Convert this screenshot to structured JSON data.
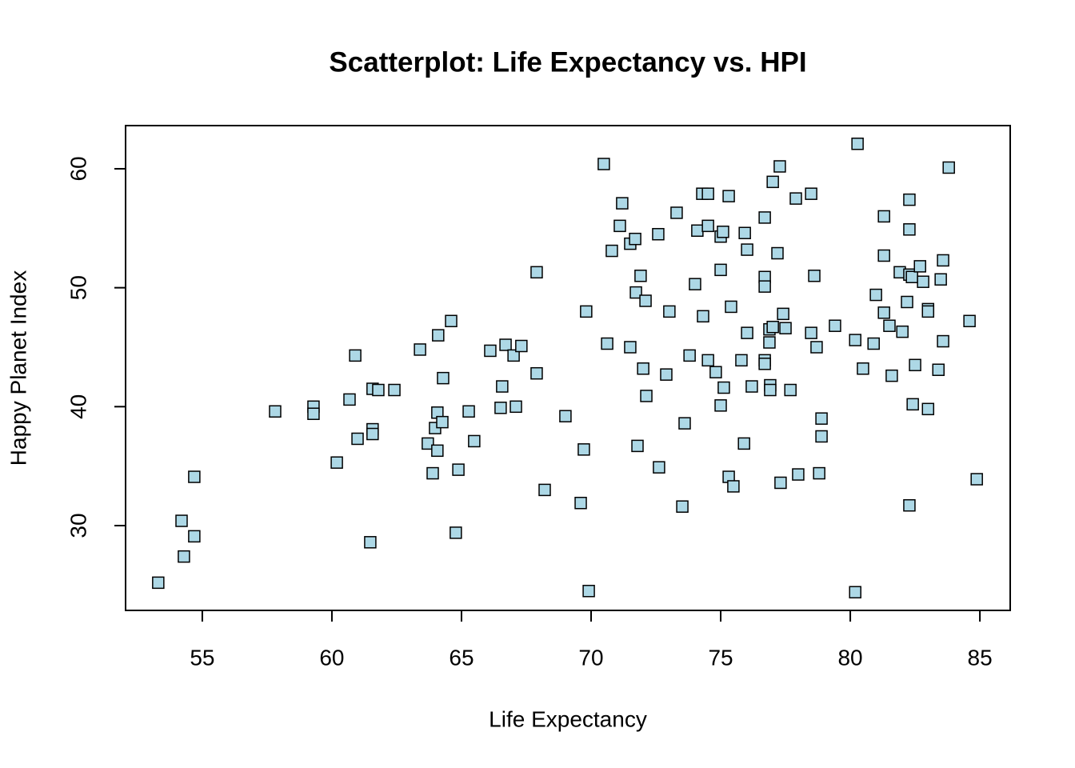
{
  "chart_data": {
    "type": "scatter",
    "title": "Scatterplot: Life Expectancy vs. HPI",
    "x_label": "Life Expectancy",
    "y_label": "Happy Planet Index",
    "marker_color": "#add8e6",
    "marker_edge": "#000000",
    "xlim": [
      52.04,
      86.17
    ],
    "ylim": [
      22.87,
      63.63
    ],
    "xticks": [
      55,
      60,
      65,
      70,
      75,
      80,
      85
    ],
    "yticks": [
      30,
      40,
      50,
      60
    ],
    "series": [
      {
        "x": [
          53.3,
          54.2,
          54.29,
          54.69,
          54.69,
          57.81,
          59.29,
          59.29,
          60.19,
          60.68,
          60.9,
          60.99,
          61.48,
          61.57,
          61.57,
          61.57,
          61.79,
          62.41,
          63.4,
          63.7,
          63.89,
          63.98,
          64.07,
          64.07,
          64.1,
          64.26,
          64.29,
          64.6,
          64.78,
          64.88,
          65.28,
          65.49,
          66.11,
          66.51,
          66.57,
          66.7,
          67.01,
          67.1,
          67.31,
          67.9,
          67.9,
          68.21,
          69.01,
          69.6,
          69.72,
          69.81,
          69.91,
          70.49,
          70.62,
          70.8,
          71.11,
          71.2,
          71.51,
          71.51,
          71.7,
          71.73,
          71.79,
          71.91,
          72.01,
          72.1,
          72.13,
          72.59,
          72.62,
          72.9,
          73.02,
          73.3,
          73.52,
          73.61,
          73.8,
          74.01,
          74.1,
          74.29,
          74.32,
          74.51,
          74.51,
          74.51,
          74.81,
          75.0,
          75.0,
          75.0,
          75.09,
          75.12,
          75.31,
          75.31,
          75.4,
          75.49,
          75.8,
          75.9,
          75.93,
          76.02,
          76.02,
          76.2,
          76.7,
          76.7,
          76.7,
          76.7,
          76.7,
          76.88,
          76.88,
          76.91,
          76.91,
          77.01,
          77.01,
          77.19,
          77.28,
          77.31,
          77.41,
          77.5,
          77.69,
          77.9,
          77.99,
          78.49,
          78.49,
          78.61,
          78.7,
          78.8,
          78.89,
          78.89,
          79.41,
          80.19,
          80.19,
          80.28,
          80.49,
          80.9,
          80.99,
          81.3,
          81.3,
          81.3,
          81.51,
          81.6,
          81.91,
          82.01,
          82.19,
          82.28,
          82.28,
          82.28,
          82.28,
          82.38,
          82.41,
          82.5,
          82.69,
          82.81,
          83.0,
          83.0,
          83.0,
          83.4,
          83.49,
          83.58,
          83.58,
          83.8,
          84.6,
          84.88
        ],
        "y": [
          25.2,
          30.4,
          27.4,
          29.1,
          34.1,
          39.6,
          40.0,
          39.4,
          35.3,
          40.6,
          44.3,
          37.3,
          28.6,
          41.5,
          38.1,
          37.7,
          41.4,
          41.4,
          44.8,
          36.9,
          34.4,
          38.2,
          39.5,
          36.3,
          46.0,
          38.7,
          42.4,
          47.2,
          29.4,
          34.7,
          39.6,
          37.1,
          44.7,
          39.9,
          41.7,
          45.2,
          44.3,
          40.0,
          45.1,
          51.3,
          42.8,
          33.0,
          39.2,
          31.9,
          36.4,
          48.0,
          24.5,
          60.4,
          45.3,
          53.1,
          55.2,
          57.1,
          53.7,
          45.0,
          54.1,
          49.6,
          36.7,
          51.0,
          43.2,
          48.9,
          40.9,
          54.5,
          34.9,
          42.7,
          48.0,
          56.3,
          31.6,
          38.6,
          44.3,
          50.3,
          54.8,
          57.9,
          47.6,
          55.2,
          57.9,
          43.9,
          42.9,
          51.5,
          54.3,
          40.1,
          54.7,
          41.6,
          57.7,
          34.1,
          48.4,
          33.3,
          43.9,
          36.9,
          54.6,
          53.2,
          46.2,
          41.7,
          55.9,
          50.9,
          50.1,
          43.9,
          43.6,
          46.5,
          45.4,
          41.8,
          41.4,
          58.9,
          46.7,
          52.9,
          60.2,
          33.6,
          47.8,
          46.6,
          41.4,
          57.5,
          34.3,
          57.9,
          46.2,
          51.0,
          45.0,
          34.4,
          39.0,
          37.5,
          46.8,
          45.6,
          24.4,
          62.1,
          43.2,
          45.3,
          49.4,
          56.0,
          52.7,
          47.9,
          46.8,
          42.6,
          51.3,
          46.3,
          48.8,
          57.4,
          54.9,
          51.1,
          31.7,
          50.9,
          40.2,
          43.5,
          51.8,
          50.5,
          48.2,
          39.8,
          48.0,
          43.1,
          50.7,
          52.3,
          45.5,
          60.1,
          47.2,
          33.9
        ]
      }
    ]
  }
}
